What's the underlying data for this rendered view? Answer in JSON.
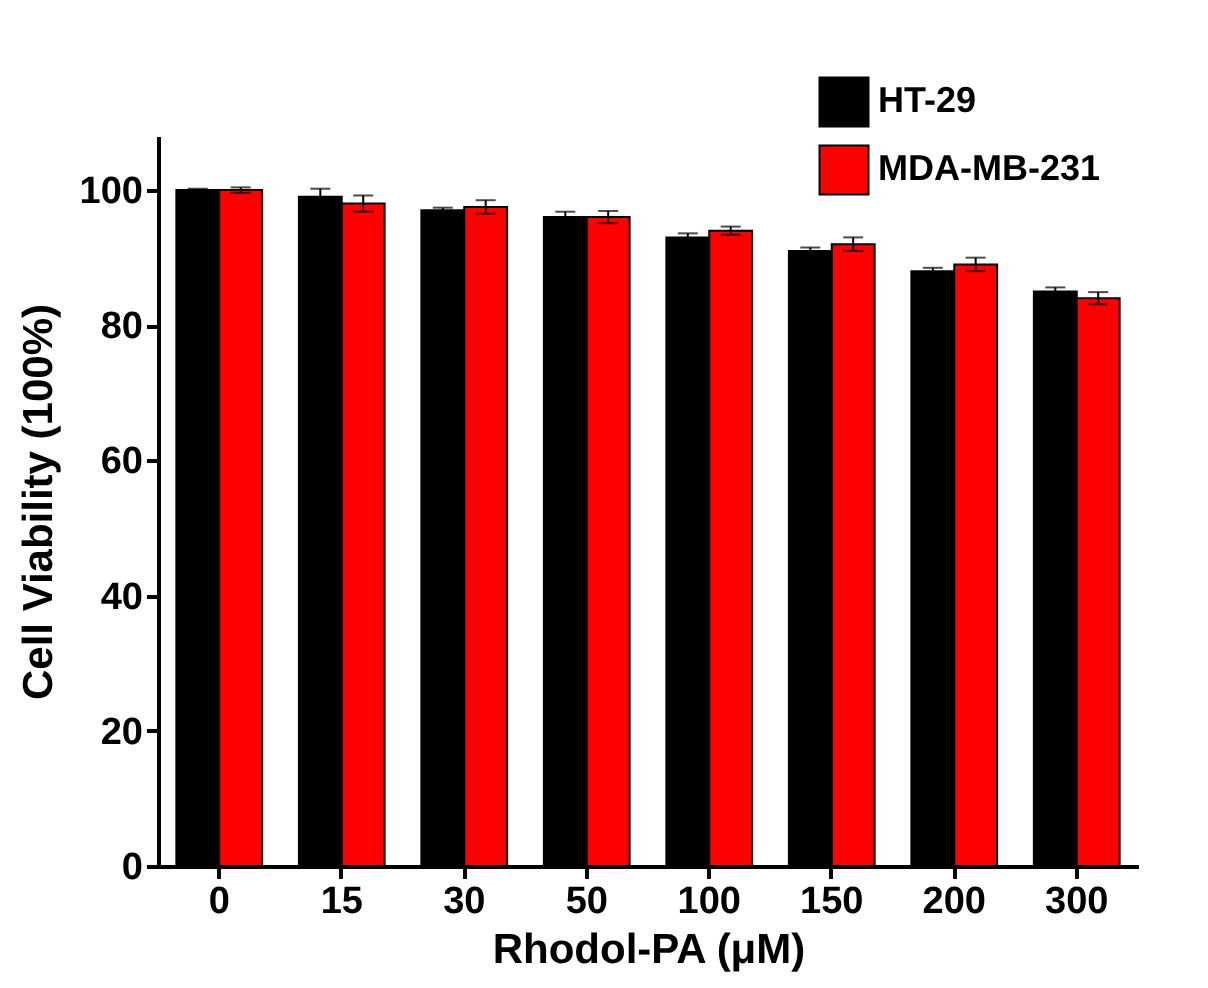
{
  "chart_data": {
    "type": "bar",
    "xlabel": "Rhodol-PA (μM)",
    "ylabel": "Cell  Viability (100%)",
    "categories": [
      "0",
      "15",
      "30",
      "50",
      "100",
      "150",
      "200",
      "300"
    ],
    "series": [
      {
        "name": "HT-29",
        "color": "#000000",
        "values": [
          100,
          99,
          97,
          96,
          93,
          91,
          88,
          85
        ],
        "errors": [
          0.2,
          1.2,
          0.4,
          0.8,
          0.6,
          0.5,
          0.5,
          0.6
        ]
      },
      {
        "name": "MDA-MB-231",
        "color": "#ff0000",
        "values": [
          100,
          98,
          97.5,
          96,
          94,
          92,
          89,
          84
        ],
        "errors": [
          0.4,
          1.2,
          1,
          0.9,
          0.6,
          1,
          1,
          0.9
        ]
      }
    ],
    "ylim": [
      0,
      108
    ],
    "yticks": [
      0,
      20,
      40,
      60,
      80,
      100
    ],
    "grid": false,
    "legend": "top right"
  }
}
